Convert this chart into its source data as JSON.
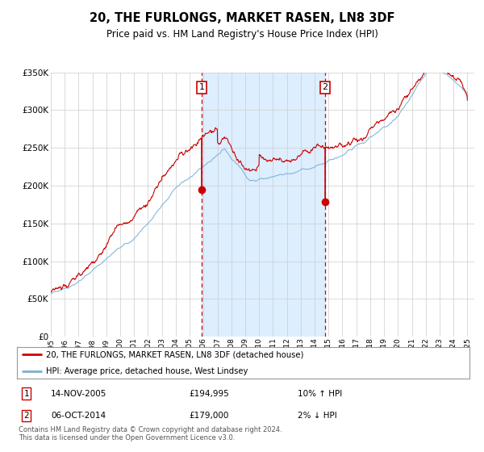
{
  "title": "20, THE FURLONGS, MARKET RASEN, LN8 3DF",
  "subtitle": "Price paid vs. HM Land Registry's House Price Index (HPI)",
  "legend_line1": "20, THE FURLONGS, MARKET RASEN, LN8 3DF (detached house)",
  "legend_line2": "HPI: Average price, detached house, West Lindsey",
  "annotation1_date": "14-NOV-2005",
  "annotation1_price": "£194,995",
  "annotation1_hpi": "10% ↑ HPI",
  "annotation2_date": "06-OCT-2014",
  "annotation2_price": "£179,000",
  "annotation2_hpi": "2% ↓ HPI",
  "footer": "Contains HM Land Registry data © Crown copyright and database right 2024.\nThis data is licensed under the Open Government Licence v3.0.",
  "red_color": "#cc0000",
  "blue_color": "#7ab0d4",
  "shading_color": "#ddeeff",
  "annotation_box_color": "#cc0000",
  "background_color": "#ffffff",
  "ylim_min": 0,
  "ylim_max": 350000,
  "point1_value": 194995,
  "point2_value": 179000,
  "date1_yr": 2005.872,
  "date2_yr": 2014.756
}
